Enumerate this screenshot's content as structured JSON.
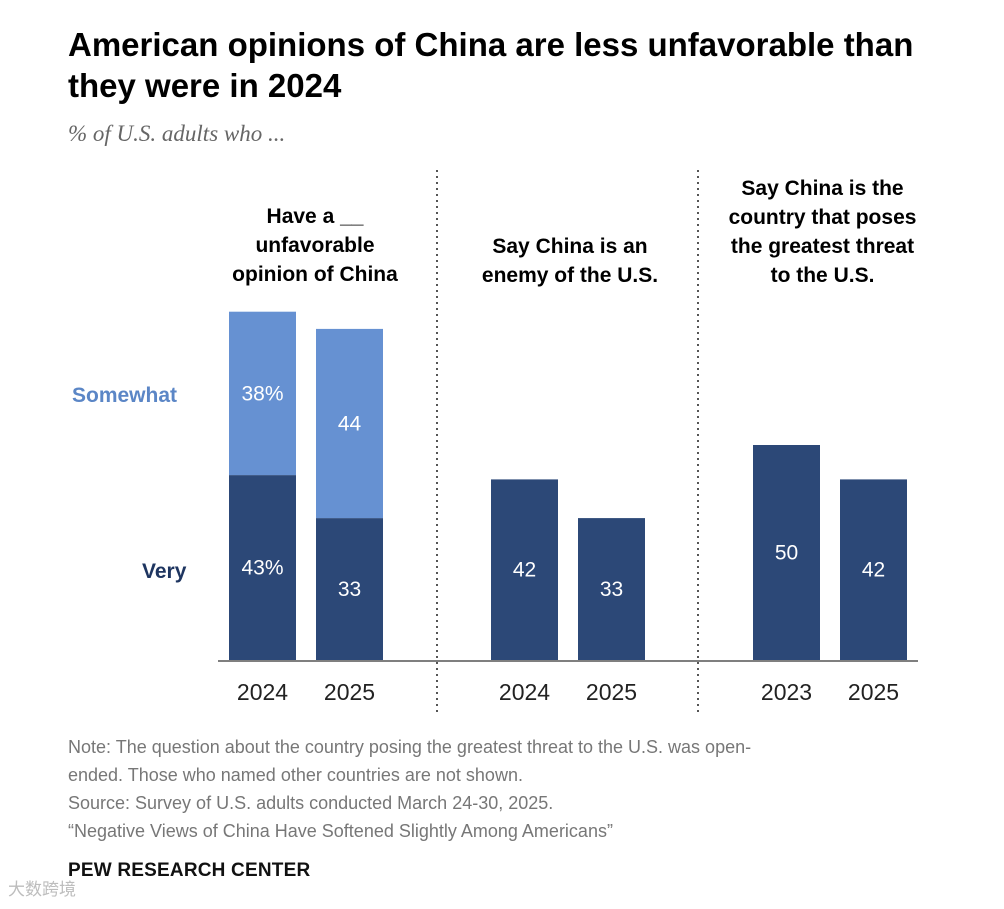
{
  "title": "American opinions of China are less unfavorable than they were in 2024",
  "subtitle": "% of U.S. adults who ...",
  "legend": {
    "somewhat": "Somewhat",
    "very": "Very"
  },
  "colors": {
    "very": "#2c4877",
    "somewhat": "#6691d2",
    "somewhat_label": "#5b86c6",
    "very_label": "#1e3560",
    "axis": "#7f7f7f"
  },
  "chart_data": [
    {
      "type": "bar",
      "stacked": true,
      "title": "Have a __\nunfavorable\nopinion of China",
      "categories": [
        "2024",
        "2025"
      ],
      "series": [
        {
          "name": "Very",
          "values": [
            43,
            33
          ],
          "labels": [
            "43%",
            "33"
          ]
        },
        {
          "name": "Somewhat",
          "values": [
            38,
            44
          ],
          "labels": [
            "38%",
            "44"
          ]
        }
      ],
      "ylim": [
        0,
        100
      ]
    },
    {
      "type": "bar",
      "title": "Say China is an\nenemy of the U.S.",
      "categories": [
        "2024",
        "2025"
      ],
      "series": [
        {
          "values": [
            42,
            33
          ],
          "labels": [
            "42",
            "33"
          ]
        }
      ],
      "ylim": [
        0,
        100
      ]
    },
    {
      "type": "bar",
      "title": "Say China is the\ncountry that poses\nthe greatest threat\nto the U.S.",
      "categories": [
        "2023",
        "2025"
      ],
      "series": [
        {
          "values": [
            50,
            42
          ],
          "labels": [
            "50",
            "42"
          ]
        }
      ],
      "ylim": [
        0,
        100
      ]
    }
  ],
  "notes": [
    "Note: The question about the country posing the greatest threat to the U.S. was open-",
    "ended. Those who named other countries are not shown.",
    "Source: Survey of U.S. adults conducted March 24-30, 2025.",
    "“Negative Views of China Have Softened Slightly Among Americans”"
  ],
  "credit": "PEW RESEARCH CENTER",
  "watermark": "大数跨境"
}
